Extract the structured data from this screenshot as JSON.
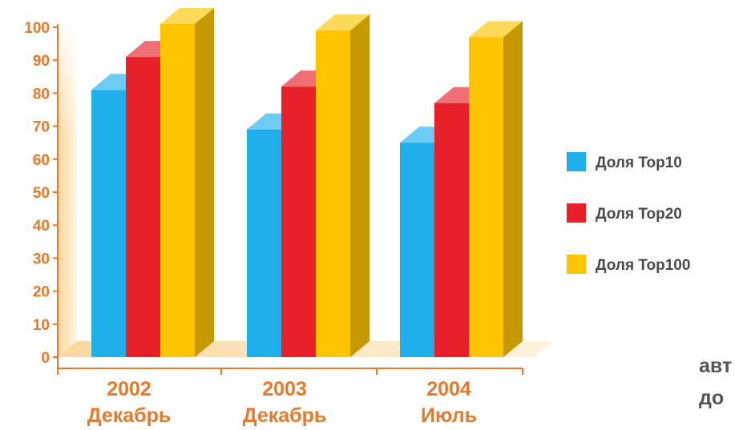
{
  "chart_data": {
    "type": "bar",
    "categories": [
      "2002 Декабрь",
      "2003 Декабрь",
      "2004 Июль"
    ],
    "category_lines": [
      [
        "2002",
        "Декабрь"
      ],
      [
        "2003",
        "Декабрь"
      ],
      [
        "2004",
        "Июль"
      ]
    ],
    "series": [
      {
        "name": "Доля Top10",
        "values": [
          81,
          69,
          65
        ],
        "color": "#1fb0ec"
      },
      {
        "name": "Доля Top20",
        "values": [
          91,
          82,
          77
        ],
        "color": "#e8202a"
      },
      {
        "name": "Доля Top100",
        "values": [
          101,
          99,
          97
        ],
        "color": "#ffc400"
      }
    ],
    "title": "",
    "xlabel": "",
    "ylabel": "",
    "ylim": [
      0,
      100
    ],
    "yticks": [
      "0",
      "10",
      "20",
      "30",
      "40",
      "50",
      "60",
      "70",
      "80",
      "90",
      "100"
    ],
    "legend_position": "right",
    "grid": false,
    "three_d": true,
    "colors": {
      "axis": "#e8792b",
      "wall": "#fde6bd",
      "floor": "#fde1b4",
      "tick_text": "#e8792b",
      "legend_text": "#4a4a4a"
    }
  },
  "partial_text": {
    "line1": "авт",
    "line2": "до"
  }
}
